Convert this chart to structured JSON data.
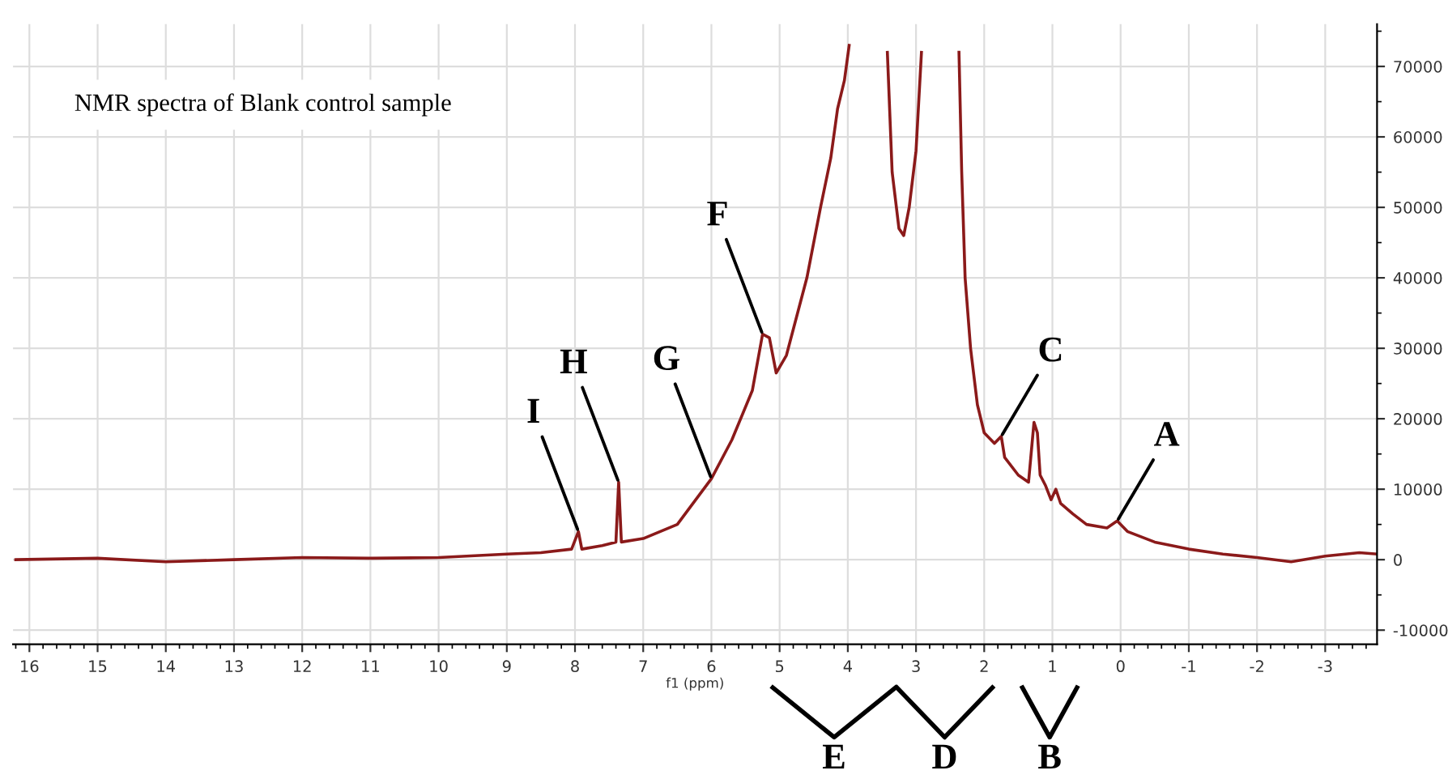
{
  "chart_data": {
    "type": "line",
    "title": "NMR spectra of Blank control sample",
    "xlabel": "f1 (ppm)",
    "x": [
      16.2,
      15,
      14,
      13,
      12,
      11,
      10,
      9,
      8.5,
      8.05,
      7.95,
      7.9,
      7.6,
      7.4,
      7.36,
      7.32,
      7.0,
      6.5,
      6.0,
      5.7,
      5.4,
      5.25,
      5.15,
      5.05,
      4.9,
      4.6,
      4.4,
      4.25,
      4.15,
      4.05,
      3.98,
      3.7,
      3.42,
      3.35,
      3.25,
      3.18,
      3.1,
      3.0,
      2.92,
      2.6,
      2.37,
      2.33,
      2.28,
      2.2,
      2.1,
      2.0,
      1.85,
      1.75,
      1.7,
      1.5,
      1.35,
      1.27,
      1.22,
      1.18,
      1.1,
      1.02,
      0.95,
      0.88,
      0.7,
      0.5,
      0.2,
      0.05,
      -0.1,
      -0.5,
      -1,
      -1.5,
      -2,
      -2.5,
      -3,
      -3.5,
      -3.76
    ],
    "series": [
      {
        "color": "#8b1a1a",
        "values": [
          0,
          200,
          -300,
          0,
          300,
          200,
          300,
          800,
          1000,
          1500,
          4000,
          1500,
          2000,
          2500,
          11000,
          2500,
          3000,
          5000,
          11500,
          17000,
          24000,
          32000,
          31500,
          26500,
          29000,
          40000,
          50000,
          57000,
          64000,
          68000,
          73000,
          null,
          72000,
          55000,
          47000,
          46000,
          50000,
          58000,
          72000,
          null,
          72000,
          55000,
          40000,
          30000,
          22000,
          18000,
          16500,
          17500,
          14500,
          12000,
          11000,
          19500,
          18000,
          12000,
          10500,
          8500,
          10000,
          8000,
          6500,
          5000,
          4500,
          5500,
          4000,
          2500,
          1500,
          800,
          300,
          -300,
          500,
          1000,
          800
        ]
      }
    ],
    "xlim": [
      16.24,
      -3.76
    ],
    "xticks": [
      16,
      15,
      14,
      13,
      12,
      11,
      10,
      9,
      8,
      7,
      6,
      5,
      4,
      3,
      2,
      1,
      0,
      {
        "value": -1,
        "label": "-1"
      },
      {
        "value": -2,
        "label": "-2"
      },
      {
        "value": -3,
        "label": "-3"
      }
    ],
    "ylim": [
      -12000,
      76000
    ],
    "yticks": [
      {
        "value": -10000,
        "label": "-10000"
      },
      0,
      10000,
      20000,
      30000,
      40000,
      50000,
      60000,
      70000
    ],
    "grid": true,
    "annotations": [
      {
        "text": "A",
        "x": 0.05,
        "y": 5500
      },
      {
        "text": "C",
        "x": 1.75,
        "y": 17500
      },
      {
        "text": "F",
        "x": 5.25,
        "y": 32000
      },
      {
        "text": "G",
        "x": 6.0,
        "y": 11500
      },
      {
        "text": "H",
        "x": 7.36,
        "y": 11000
      },
      {
        "text": "I",
        "x": 7.95,
        "y": 4000
      },
      "E",
      "D",
      "B"
    ]
  }
}
